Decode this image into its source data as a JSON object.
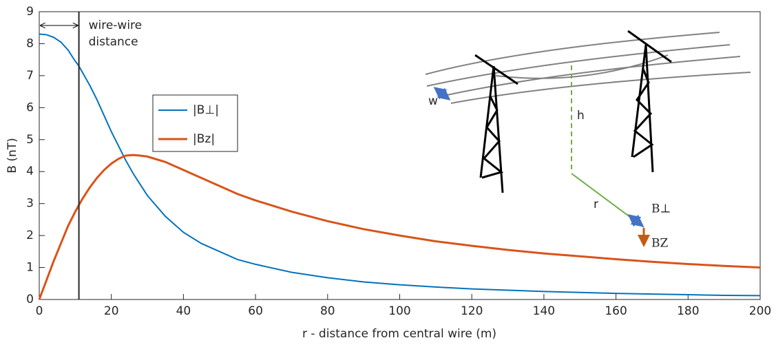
{
  "chart_data": {
    "type": "line",
    "xlabel": "r - distance from central wire (m)",
    "ylabel": "B (nT)",
    "x": [
      0,
      2,
      4,
      6,
      8,
      10,
      11,
      12,
      14,
      16,
      18,
      20,
      22,
      24,
      26,
      28,
      30,
      35,
      40,
      45,
      50,
      55,
      60,
      70,
      80,
      90,
      100,
      110,
      120,
      130,
      140,
      150,
      160,
      170,
      180,
      190,
      200
    ],
    "series": [
      {
        "name": "|B⊥|",
        "color": "#0072bd",
        "values": [
          8.3,
          8.28,
          8.2,
          8.05,
          7.8,
          7.45,
          7.3,
          7.1,
          6.7,
          6.25,
          5.75,
          5.25,
          4.8,
          4.35,
          3.95,
          3.6,
          3.25,
          2.6,
          2.1,
          1.75,
          1.5,
          1.25,
          1.1,
          0.85,
          0.68,
          0.55,
          0.46,
          0.39,
          0.33,
          0.29,
          0.25,
          0.22,
          0.19,
          0.17,
          0.15,
          0.13,
          0.12
        ]
      },
      {
        "name": "|Bz|",
        "color": "#d95319",
        "values": [
          0,
          0.6,
          1.2,
          1.75,
          2.3,
          2.75,
          2.95,
          3.15,
          3.5,
          3.8,
          4.05,
          4.25,
          4.4,
          4.5,
          4.52,
          4.5,
          4.47,
          4.3,
          4.05,
          3.8,
          3.55,
          3.3,
          3.1,
          2.75,
          2.45,
          2.2,
          2.0,
          1.82,
          1.68,
          1.55,
          1.44,
          1.35,
          1.26,
          1.18,
          1.11,
          1.05,
          1.0
        ]
      }
    ],
    "xlim": [
      0,
      200
    ],
    "xticks": [
      0,
      20,
      40,
      60,
      80,
      100,
      120,
      140,
      160,
      180,
      200
    ],
    "ylim": [
      0,
      9
    ],
    "yticks": [
      0,
      1,
      2,
      3,
      4,
      5,
      6,
      7,
      8,
      9
    ],
    "vline": {
      "x": 11,
      "label": [
        "wire-wire",
        "distance"
      ]
    },
    "inset_labels": {
      "w": "w",
      "h": "h",
      "r": "r",
      "b_perp": "B⊥",
      "b_z": "BZ"
    }
  }
}
